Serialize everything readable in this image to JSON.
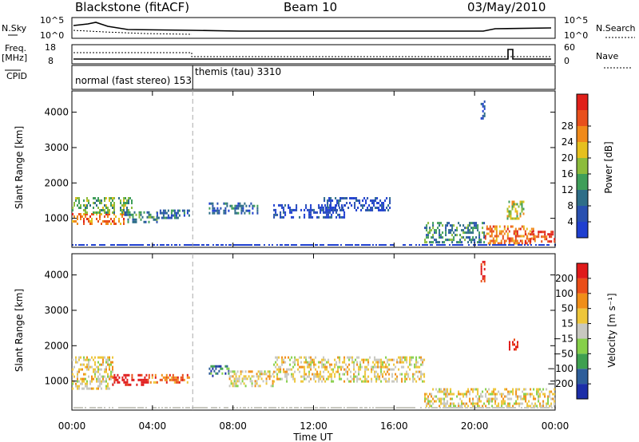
{
  "header": {
    "radar": "Blackstone (fitACF)",
    "beam": "Beam 10",
    "date": "03/May/2010"
  },
  "strips": {
    "nsky": {
      "left_label": "N.Sky",
      "left_top": "10^5",
      "left_bottom": "10^0",
      "right_label": "N.Search",
      "right_top": "10^5",
      "right_bottom": "10^0"
    },
    "freq": {
      "left_label_1": "Freq.",
      "left_label_2": "[MHz]",
      "left_top": "18",
      "left_bottom": "8",
      "right_label": "Nave",
      "right_top": "60",
      "right_bottom": "0"
    },
    "cpid": {
      "label": "CPID",
      "mode1": "normal (fast stereo) 153",
      "mode2": "themis (tau) 3310",
      "mode_change_hour": 6.0
    }
  },
  "colors": {
    "power": [
      "#1f3fd0",
      "#2850b0",
      "#2e6e88",
      "#3f9e5a",
      "#8cbc3c",
      "#e6c01e",
      "#f08a1a",
      "#e8501c",
      "#e0201a"
    ],
    "velocity": [
      "#e01a1a",
      "#ea4e18",
      "#f08e18",
      "#eec63a",
      "#c8c8c0",
      "#86d04a",
      "#3fa050",
      "#2e5e9a",
      "#1c2ea8"
    ]
  },
  "chart_data": [
    {
      "type": "heatmap",
      "name": "power",
      "ylabel": "Slant Range [km]",
      "x": [
        "00:00",
        "04:00",
        "08:00",
        "12:00",
        "16:00",
        "20:00",
        "00:00"
      ],
      "y": [
        "1000",
        "2000",
        "3000",
        "4000"
      ],
      "xlim": [
        0,
        24
      ],
      "ylim": [
        180,
        4600
      ],
      "colorbar": {
        "label": "Power [dB]",
        "ticks": [
          "4",
          "8",
          "12",
          "16",
          "20",
          "24",
          "28"
        ],
        "range": [
          0,
          32
        ]
      },
      "regions": [
        {
          "t0": 0.0,
          "t1": 2.6,
          "r0": 850,
          "r1": 1150,
          "level": 7
        },
        {
          "t0": 0.0,
          "t1": 3.0,
          "r0": 1150,
          "r1": 1600,
          "level": 4
        },
        {
          "t0": 2.6,
          "t1": 4.2,
          "r0": 900,
          "r1": 1200,
          "level": 3
        },
        {
          "t0": 4.2,
          "t1": 5.8,
          "r0": 1000,
          "r1": 1250,
          "level": 2
        },
        {
          "t0": 6.8,
          "t1": 9.2,
          "r0": 1150,
          "r1": 1450,
          "level": 2
        },
        {
          "t0": 10.0,
          "t1": 13.5,
          "r0": 1000,
          "r1": 1400,
          "level": 1
        },
        {
          "t0": 12.5,
          "t1": 15.8,
          "r0": 1200,
          "r1": 1600,
          "level": 1
        },
        {
          "t0": 17.5,
          "t1": 20.5,
          "r0": 300,
          "r1": 900,
          "level": 3
        },
        {
          "t0": 20.5,
          "t1": 23.0,
          "r0": 300,
          "r1": 800,
          "level": 7
        },
        {
          "t0": 22.5,
          "t1": 24.0,
          "r0": 350,
          "r1": 650,
          "level": 8
        },
        {
          "t0": 21.6,
          "t1": 22.4,
          "r0": 1000,
          "r1": 1500,
          "level": 5
        },
        {
          "t0": 20.3,
          "t1": 20.5,
          "r0": 3800,
          "r1": 4400,
          "level": 2
        }
      ]
    },
    {
      "type": "heatmap",
      "name": "velocity",
      "xlabel": "Time UT",
      "ylabel": "Slant Range [km]",
      "x": [
        "00:00",
        "04:00",
        "08:00",
        "12:00",
        "16:00",
        "20:00",
        "00:00"
      ],
      "y": [
        "1000",
        "2000",
        "3000",
        "4000"
      ],
      "xlim": [
        0,
        24
      ],
      "ylim": [
        180,
        4600
      ],
      "colorbar": {
        "label": "Velocity [m s⁻¹]",
        "ticks": [
          "200",
          "100",
          "50",
          "15",
          "−15",
          "−50",
          "−100",
          "−200"
        ]
      },
      "regions": [
        {
          "t0": 0.0,
          "t1": 2.0,
          "r0": 800,
          "r1": 1700,
          "level": 4
        },
        {
          "t0": 2.0,
          "t1": 3.8,
          "r0": 900,
          "r1": 1200,
          "level": 0
        },
        {
          "t0": 3.8,
          "t1": 5.8,
          "r0": 950,
          "r1": 1200,
          "level": 2
        },
        {
          "t0": 6.8,
          "t1": 7.8,
          "r0": 1150,
          "r1": 1450,
          "level": 7
        },
        {
          "t0": 7.8,
          "t1": 10.0,
          "r0": 850,
          "r1": 1300,
          "level": 4
        },
        {
          "t0": 10.0,
          "t1": 17.5,
          "r0": 1000,
          "r1": 1700,
          "level": 4
        },
        {
          "t0": 17.5,
          "t1": 24.0,
          "r0": 300,
          "r1": 800,
          "level": 4
        },
        {
          "t0": 21.7,
          "t1": 22.1,
          "r0": 1900,
          "r1": 2200,
          "level": 0
        },
        {
          "t0": 20.3,
          "t1": 20.5,
          "r0": 3800,
          "r1": 4400,
          "level": 0
        }
      ]
    }
  ]
}
